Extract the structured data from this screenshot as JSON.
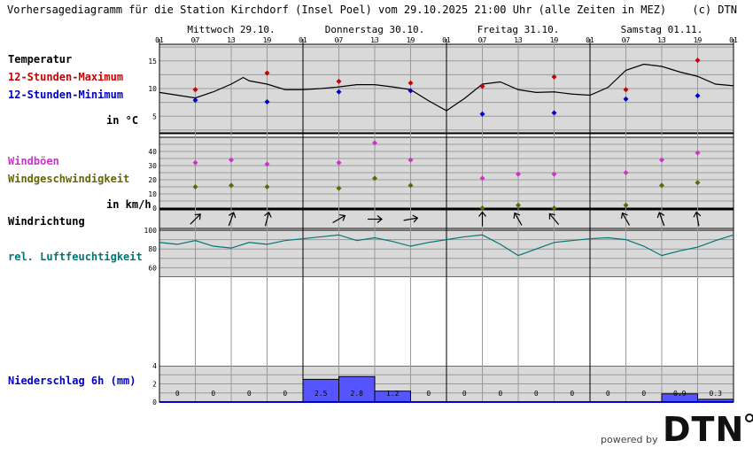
{
  "header": {
    "title": "Vorhersagediagramm für die Station Kirchdorf (Insel Poel) vom 29.10.2025 21:00 Uhr (alle Zeiten in MEZ)",
    "copyright": "(c) DTN"
  },
  "labels": {
    "temperature": "Temperatur",
    "max12": "12-Stunden-Maximum",
    "min12": "12-Stunden-Minimum",
    "temp_unit": "in °C",
    "gusts": "Windböen",
    "windspeed": "Windgeschwindigkeit",
    "wind_unit": "in km/h",
    "winddir": "Windrichtung",
    "humidity": "rel. Luftfeuchtigkeit",
    "precip": "Niederschlag 6h (mm)"
  },
  "colors": {
    "max": "#cc0000",
    "min": "#0000cc",
    "gusts": "#cc33cc",
    "windspeed": "#666600",
    "humidity": "#007777",
    "precip_fill": "#5555ff",
    "panel_bg": "#d9d9d9"
  },
  "days": [
    "Mittwoch 29.10.",
    "Donnerstag 30.10.",
    "Freitag 31.10.",
    "Samstag 01.11."
  ],
  "hour_ticks": [
    "01",
    "07",
    "13",
    "19",
    "01",
    "07",
    "13",
    "19",
    "01",
    "07",
    "13",
    "19",
    "01",
    "07",
    "13",
    "19",
    "01"
  ],
  "footer": {
    "powered": "powered by",
    "logo": "DTN"
  },
  "chart_data": {
    "type": "line",
    "x_hours": [
      0,
      6,
      12,
      18,
      24,
      30,
      36,
      42,
      48,
      54,
      60,
      66,
      72,
      78,
      84,
      90,
      96
    ],
    "temperature": {
      "ylim": [
        2,
        18
      ],
      "ticks": [
        5,
        10,
        15
      ],
      "curve_hours": [
        0,
        3,
        6,
        9,
        12,
        14,
        15,
        18,
        21,
        24,
        27,
        30,
        33,
        36,
        39,
        42,
        45,
        48,
        51,
        54,
        57,
        60,
        63,
        66,
        69,
        72,
        75,
        78,
        81,
        84,
        87,
        90,
        93,
        96
      ],
      "curve_values": [
        9.3,
        8.8,
        8.3,
        9.4,
        10.8,
        12.0,
        11.4,
        10.8,
        9.8,
        9.8,
        10.0,
        10.3,
        10.7,
        10.7,
        10.3,
        9.8,
        7.8,
        6.0,
        8.2,
        10.8,
        11.2,
        9.8,
        9.3,
        9.4,
        9.0,
        8.8,
        10.2,
        13.3,
        14.4,
        14.0,
        13.0,
        12.2,
        10.8,
        10.5
      ],
      "max12": [
        {
          "x": 6,
          "value": 9.8
        },
        {
          "x": 18,
          "value": 12.8
        },
        {
          "x": 30,
          "value": 11.3
        },
        {
          "x": 42,
          "value": 11.0
        },
        {
          "x": 54,
          "value": 10.4
        },
        {
          "x": 66,
          "value": 12.1
        },
        {
          "x": 78,
          "value": 9.8
        },
        {
          "x": 90,
          "value": 15.1
        }
      ],
      "min12": [
        {
          "x": 6,
          "value": 7.9
        },
        {
          "x": 18,
          "value": 7.6
        },
        {
          "x": 30,
          "value": 9.4
        },
        {
          "x": 42,
          "value": 9.6
        },
        {
          "x": 54,
          "value": 5.4
        },
        {
          "x": 66,
          "value": 5.6
        },
        {
          "x": 78,
          "value": 8.1
        },
        {
          "x": 90,
          "value": 8.7
        }
      ]
    },
    "wind": {
      "ylim": [
        0,
        50
      ],
      "ticks": [
        0,
        10,
        20,
        30,
        40
      ],
      "gusts": [
        {
          "x": 6,
          "value": 32
        },
        {
          "x": 12,
          "value": 34
        },
        {
          "x": 18,
          "value": 31
        },
        {
          "x": 30,
          "value": 32
        },
        {
          "x": 36,
          "value": 46
        },
        {
          "x": 42,
          "value": 34
        },
        {
          "x": 54,
          "value": 21
        },
        {
          "x": 60,
          "value": 24
        },
        {
          "x": 66,
          "value": 24
        },
        {
          "x": 78,
          "value": 25
        },
        {
          "x": 84,
          "value": 34
        },
        {
          "x": 90,
          "value": 39
        }
      ],
      "speed": [
        {
          "x": 6,
          "value": 15
        },
        {
          "x": 12,
          "value": 16
        },
        {
          "x": 18,
          "value": 15
        },
        {
          "x": 30,
          "value": 14
        },
        {
          "x": 36,
          "value": 21
        },
        {
          "x": 42,
          "value": 16
        },
        {
          "x": 54,
          "value": 0
        },
        {
          "x": 60,
          "value": 2
        },
        {
          "x": 66,
          "value": 0
        },
        {
          "x": 78,
          "value": 2
        },
        {
          "x": 84,
          "value": 16
        },
        {
          "x": 90,
          "value": 18
        }
      ]
    },
    "wind_direction": [
      {
        "x": 6,
        "to_deg": 45
      },
      {
        "x": 12,
        "to_deg": 20
      },
      {
        "x": 18,
        "to_deg": 15
      },
      {
        "x": 30,
        "to_deg": 60
      },
      {
        "x": 36,
        "to_deg": 90
      },
      {
        "x": 42,
        "to_deg": 80
      },
      {
        "x": 54,
        "to_deg": 0
      },
      {
        "x": 60,
        "to_deg": -30
      },
      {
        "x": 66,
        "to_deg": -40
      },
      {
        "x": 78,
        "to_deg": -30
      },
      {
        "x": 84,
        "to_deg": -20
      },
      {
        "x": 90,
        "to_deg": -10
      }
    ],
    "humidity": {
      "ylim": [
        50,
        100
      ],
      "ticks": [
        60,
        80,
        100
      ],
      "curve_hours": [
        0,
        3,
        6,
        9,
        12,
        15,
        18,
        21,
        24,
        27,
        30,
        33,
        36,
        39,
        42,
        45,
        48,
        51,
        54,
        57,
        60,
        63,
        66,
        69,
        72,
        75,
        78,
        81,
        84,
        87,
        90,
        93,
        96
      ],
      "curve_values": [
        87,
        85,
        89,
        83,
        81,
        87,
        85,
        89,
        91,
        93,
        95,
        89,
        92,
        88,
        83,
        87,
        90,
        93,
        95,
        85,
        73,
        80,
        87,
        89,
        91,
        92,
        90,
        83,
        73,
        78,
        82,
        89,
        95
      ]
    },
    "precipitation": {
      "ylim": [
        0,
        4
      ],
      "ticks": [
        0,
        2,
        4
      ],
      "bars": [
        {
          "from": 0,
          "to": 6,
          "value": 0,
          "label": "0"
        },
        {
          "from": 6,
          "to": 12,
          "value": 0,
          "label": "0"
        },
        {
          "from": 12,
          "to": 18,
          "value": 0,
          "label": "0"
        },
        {
          "from": 18,
          "to": 24,
          "value": 0,
          "label": "0"
        },
        {
          "from": 24,
          "to": 30,
          "value": 2.5,
          "label": "2.5"
        },
        {
          "from": 30,
          "to": 36,
          "value": 2.8,
          "label": "2.8"
        },
        {
          "from": 36,
          "to": 42,
          "value": 1.2,
          "label": "1.2"
        },
        {
          "from": 42,
          "to": 48,
          "value": 0,
          "label": "0"
        },
        {
          "from": 48,
          "to": 54,
          "value": 0,
          "label": "0"
        },
        {
          "from": 54,
          "to": 60,
          "value": 0,
          "label": "0"
        },
        {
          "from": 60,
          "to": 66,
          "value": 0,
          "label": "0"
        },
        {
          "from": 66,
          "to": 72,
          "value": 0,
          "label": "0"
        },
        {
          "from": 72,
          "to": 78,
          "value": 0,
          "label": "0"
        },
        {
          "from": 78,
          "to": 84,
          "value": 0,
          "label": "0"
        },
        {
          "from": 84,
          "to": 90,
          "value": 0.9,
          "label": "0.9"
        },
        {
          "from": 90,
          "to": 96,
          "value": 0.3,
          "label": "0.3"
        }
      ]
    }
  }
}
